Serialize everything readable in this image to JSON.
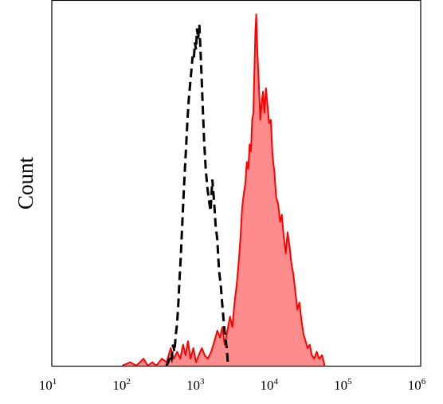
{
  "chart_data": {
    "type": "area",
    "title": "",
    "xlabel": "",
    "ylabel": "Count",
    "x_scale": "log",
    "xlim": [
      10,
      1000000
    ],
    "ylim": [
      0,
      1
    ],
    "grid": false,
    "x_ticks": [
      {
        "base": "10",
        "exp": "1",
        "value": 10
      },
      {
        "base": "10",
        "exp": "2",
        "value": 100
      },
      {
        "base": "10",
        "exp": "3",
        "value": 1000
      },
      {
        "base": "10",
        "exp": "4",
        "value": 10000
      },
      {
        "base": "10",
        "exp": "5",
        "value": 100000
      },
      {
        "base": "10",
        "exp": "6",
        "value": 1000000
      }
    ],
    "series": [
      {
        "style": "dashed-line",
        "color": "#000000",
        "points": [
          [
            355,
            0.0
          ],
          [
            380,
            0.01
          ],
          [
            400,
            0.03
          ],
          [
            420,
            0.02
          ],
          [
            440,
            0.06
          ],
          [
            460,
            0.04
          ],
          [
            480,
            0.09
          ],
          [
            500,
            0.12
          ],
          [
            520,
            0.18
          ],
          [
            540,
            0.25
          ],
          [
            560,
            0.31
          ],
          [
            580,
            0.38
          ],
          [
            600,
            0.45
          ],
          [
            630,
            0.54
          ],
          [
            660,
            0.62
          ],
          [
            690,
            0.7
          ],
          [
            720,
            0.76
          ],
          [
            750,
            0.8
          ],
          [
            780,
            0.84
          ],
          [
            810,
            0.88
          ],
          [
            840,
            0.87
          ],
          [
            870,
            0.92
          ],
          [
            900,
            0.9
          ],
          [
            930,
            0.96
          ],
          [
            960,
            0.93
          ],
          [
            1000,
            0.97
          ],
          [
            1030,
            0.91
          ],
          [
            1070,
            0.83
          ],
          [
            1110,
            0.74
          ],
          [
            1160,
            0.64
          ],
          [
            1220,
            0.56
          ],
          [
            1280,
            0.51
          ],
          [
            1350,
            0.47
          ],
          [
            1420,
            0.44
          ],
          [
            1500,
            0.53
          ],
          [
            1580,
            0.47
          ],
          [
            1660,
            0.4
          ],
          [
            1750,
            0.36
          ],
          [
            1850,
            0.27
          ],
          [
            1950,
            0.23
          ],
          [
            2050,
            0.17
          ],
          [
            2150,
            0.12
          ],
          [
            2250,
            0.08
          ],
          [
            2350,
            0.05
          ],
          [
            2450,
            0.0
          ]
        ]
      },
      {
        "style": "filled-area",
        "color": "#ff0000",
        "fill": "#ff8c8c",
        "points": [
          [
            90,
            0.0
          ],
          [
            115,
            0.01
          ],
          [
            140,
            0.0
          ],
          [
            175,
            0.02
          ],
          [
            200,
            0.0
          ],
          [
            230,
            0.01
          ],
          [
            260,
            0.0
          ],
          [
            310,
            0.02
          ],
          [
            360,
            0.01
          ],
          [
            410,
            0.05
          ],
          [
            450,
            0.02
          ],
          [
            500,
            0.04
          ],
          [
            550,
            0.02
          ],
          [
            600,
            0.06
          ],
          [
            650,
            0.03
          ],
          [
            700,
            0.07
          ],
          [
            760,
            0.02
          ],
          [
            830,
            0.05
          ],
          [
            900,
            0.01
          ],
          [
            980,
            0.03
          ],
          [
            1080,
            0.05
          ],
          [
            1180,
            0.03
          ],
          [
            1300,
            0.02
          ],
          [
            1450,
            0.04
          ],
          [
            1600,
            0.07
          ],
          [
            1750,
            0.1
          ],
          [
            1900,
            0.08
          ],
          [
            2050,
            0.11
          ],
          [
            2200,
            0.06
          ],
          [
            2400,
            0.1
          ],
          [
            2600,
            0.14
          ],
          [
            2800,
            0.11
          ],
          [
            3000,
            0.18
          ],
          [
            3200,
            0.23
          ],
          [
            3400,
            0.29
          ],
          [
            3600,
            0.36
          ],
          [
            3800,
            0.45
          ],
          [
            4000,
            0.49
          ],
          [
            4200,
            0.52
          ],
          [
            4400,
            0.58
          ],
          [
            4600,
            0.56
          ],
          [
            4800,
            0.63
          ],
          [
            5000,
            0.61
          ],
          [
            5200,
            0.7
          ],
          [
            5400,
            0.72
          ],
          [
            5600,
            0.86
          ],
          [
            5750,
            0.95
          ],
          [
            5900,
            1.0
          ],
          [
            6100,
            0.9
          ],
          [
            6400,
            0.8
          ],
          [
            6700,
            0.7
          ],
          [
            7000,
            0.75
          ],
          [
            7300,
            0.78
          ],
          [
            7600,
            0.72
          ],
          [
            8000,
            0.79
          ],
          [
            8400,
            0.74
          ],
          [
            8800,
            0.69
          ],
          [
            9300,
            0.7
          ],
          [
            9800,
            0.6
          ],
          [
            10400,
            0.55
          ],
          [
            11000,
            0.48
          ],
          [
            11700,
            0.46
          ],
          [
            12400,
            0.41
          ],
          [
            13100,
            0.43
          ],
          [
            13900,
            0.37
          ],
          [
            14800,
            0.32
          ],
          [
            15700,
            0.38
          ],
          [
            16700,
            0.34
          ],
          [
            17700,
            0.29
          ],
          [
            18800,
            0.26
          ],
          [
            20000,
            0.21
          ],
          [
            21300,
            0.16
          ],
          [
            22700,
            0.18
          ],
          [
            24200,
            0.13
          ],
          [
            25800,
            0.09
          ],
          [
            27500,
            0.07
          ],
          [
            29300,
            0.05
          ],
          [
            31300,
            0.06
          ],
          [
            33500,
            0.03
          ],
          [
            36000,
            0.02
          ],
          [
            39000,
            0.04
          ],
          [
            42000,
            0.02
          ],
          [
            46000,
            0.03
          ],
          [
            50000,
            0.0
          ]
        ]
      }
    ]
  }
}
